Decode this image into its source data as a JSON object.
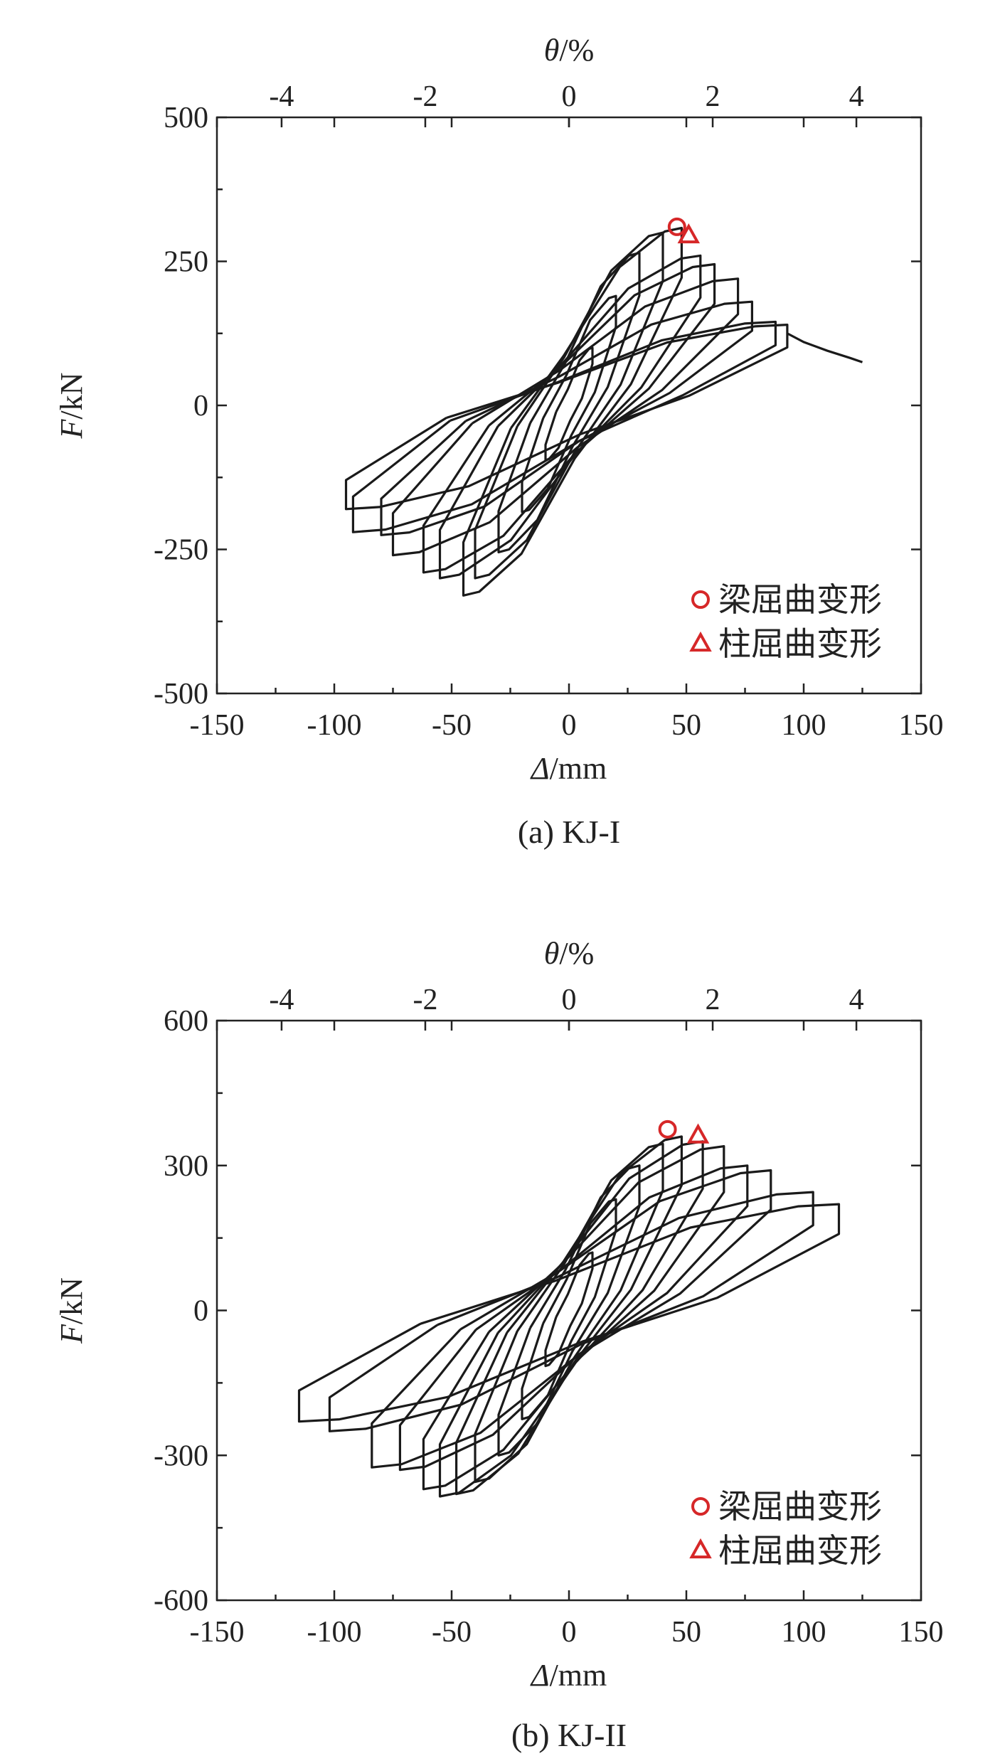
{
  "chart_data": [
    {
      "type": "line",
      "caption": "(a) KJ-I",
      "xlabel": {
        "symbol": "Δ",
        "unit": "/mm"
      },
      "ylabel": {
        "symbol": "F",
        "unit": "/kN"
      },
      "x2label": {
        "symbol": "θ",
        "unit": "/%"
      },
      "xlim": [
        -150,
        150
      ],
      "ylim": [
        -500,
        500
      ],
      "x2lim": [
        -4.9,
        4.9
      ],
      "xticks": [
        -150,
        -100,
        -50,
        0,
        50,
        100,
        150
      ],
      "xtick_labels": [
        "-150",
        "-100",
        "-50",
        "0",
        "50",
        "100",
        "150"
      ],
      "yticks": [
        -500,
        -250,
        0,
        250,
        500
      ],
      "ytick_labels": [
        "-500",
        "-250",
        "0",
        "250",
        "500"
      ],
      "x2ticks": [
        -4,
        -2,
        0,
        2,
        4
      ],
      "x2tick_labels": [
        "-4",
        "-2",
        "0",
        "2",
        "4"
      ],
      "series_color": "#1a1a1a",
      "loops": [
        {
          "dmax": 10,
          "fmax": 100,
          "dmin": -10,
          "fmin": -95
        },
        {
          "dmax": 20,
          "fmax": 190,
          "dmin": -20,
          "fmin": -185
        },
        {
          "dmax": 30,
          "fmax": 265,
          "dmin": -30,
          "fmin": -255
        },
        {
          "dmax": 40,
          "fmax": 300,
          "dmin": -40,
          "fmin": -300
        },
        {
          "dmax": 48,
          "fmax": 308,
          "dmin": -45,
          "fmin": -330
        },
        {
          "dmax": 56,
          "fmax": 260,
          "dmin": -55,
          "fmin": -300
        },
        {
          "dmax": 62,
          "fmax": 245,
          "dmin": -62,
          "fmin": -290
        },
        {
          "dmax": 72,
          "fmax": 220,
          "dmin": -75,
          "fmin": -260
        },
        {
          "dmax": 78,
          "fmax": 180,
          "dmin": -80,
          "fmin": -225
        },
        {
          "dmax": 88,
          "fmax": 145,
          "dmin": -92,
          "fmin": -220
        },
        {
          "dmax": 93,
          "fmax": 140,
          "dmin": -95,
          "fmin": -180
        }
      ],
      "tail": {
        "x": [
          93,
          100,
          110,
          120,
          125
        ],
        "y": [
          125,
          110,
          95,
          82,
          75
        ]
      },
      "markers": [
        {
          "type": "circle",
          "label": "梁屈曲变形",
          "x": 46,
          "y": 310,
          "color": "#d62728"
        },
        {
          "type": "triangle",
          "label": "柱屈曲变形",
          "x": 51,
          "y": 295,
          "color": "#d62728"
        }
      ]
    },
    {
      "type": "line",
      "caption": "(b)  KJ-II",
      "xlabel": {
        "symbol": "Δ",
        "unit": "/mm"
      },
      "ylabel": {
        "symbol": "F",
        "unit": "/kN"
      },
      "x2label": {
        "symbol": "θ",
        "unit": "/%"
      },
      "xlim": [
        -150,
        150
      ],
      "ylim": [
        -600,
        600
      ],
      "x2lim": [
        -4.9,
        4.9
      ],
      "xticks": [
        -150,
        -100,
        -50,
        0,
        50,
        100,
        150
      ],
      "xtick_labels": [
        "-150",
        "-100",
        "-50",
        "0",
        "50",
        "100",
        "150"
      ],
      "yticks": [
        -600,
        -300,
        0,
        300,
        600
      ],
      "ytick_labels": [
        "-600",
        "-300",
        "0",
        "300",
        "600"
      ],
      "x2ticks": [
        -4,
        -2,
        0,
        2,
        4
      ],
      "x2tick_labels": [
        "-4",
        "-2",
        "0",
        "2",
        "4"
      ],
      "series_color": "#1a1a1a",
      "loops": [
        {
          "dmax": 10,
          "fmax": 120,
          "dmin": -10,
          "fmin": -115
        },
        {
          "dmax": 20,
          "fmax": 230,
          "dmin": -20,
          "fmin": -225
        },
        {
          "dmax": 30,
          "fmax": 300,
          "dmin": -30,
          "fmin": -300
        },
        {
          "dmax": 40,
          "fmax": 345,
          "dmin": -40,
          "fmin": -355
        },
        {
          "dmax": 48,
          "fmax": 360,
          "dmin": -48,
          "fmin": -380
        },
        {
          "dmax": 57,
          "fmax": 350,
          "dmin": -55,
          "fmin": -385
        },
        {
          "dmax": 66,
          "fmax": 340,
          "dmin": -62,
          "fmin": -370
        },
        {
          "dmax": 76,
          "fmax": 300,
          "dmin": -72,
          "fmin": -330
        },
        {
          "dmax": 86,
          "fmax": 290,
          "dmin": -84,
          "fmin": -325
        },
        {
          "dmax": 104,
          "fmax": 245,
          "dmin": -102,
          "fmin": -250
        },
        {
          "dmax": 115,
          "fmax": 220,
          "dmin": -115,
          "fmin": -230
        }
      ],
      "tail": {
        "x": [],
        "y": []
      },
      "markers": [
        {
          "type": "circle",
          "label": "梁屈曲变形",
          "x": 42,
          "y": 375,
          "color": "#d62728"
        },
        {
          "type": "triangle",
          "label": "柱屈曲变形",
          "x": 55,
          "y": 362,
          "color": "#d62728"
        }
      ]
    }
  ]
}
